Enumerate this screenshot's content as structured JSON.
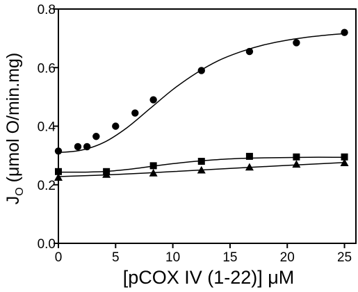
{
  "chart_data": {
    "type": "scatter",
    "title": "",
    "xlabel": "[pCOX IV (1-22)]  μM",
    "ylabel_main": "J",
    "ylabel_sub": "O",
    "ylabel_rest": " (μmol  O/min.mg)",
    "xlim": [
      0,
      26
    ],
    "ylim": [
      0,
      0.8
    ],
    "xticks": [
      0,
      5,
      10,
      15,
      20,
      25
    ],
    "yticks": [
      0.0,
      0.2,
      0.4,
      0.6,
      0.8
    ],
    "ytick_labels": [
      "0.0",
      "0.2",
      "0.4",
      "0.6",
      "0.8"
    ],
    "grid": false,
    "colors": {
      "ink": "#000000"
    },
    "series": [
      {
        "marker": "circle",
        "x": [
          0,
          1.7,
          2.5,
          3.3,
          5,
          6.7,
          8.3,
          12.5,
          16.7,
          20.8,
          25
        ],
        "y": [
          0.315,
          0.33,
          0.33,
          0.365,
          0.4,
          0.445,
          0.49,
          0.59,
          0.655,
          0.685,
          0.72
        ],
        "fit_x": [
          0,
          2,
          4,
          6,
          8,
          10,
          12,
          14,
          16,
          18,
          20,
          22,
          24,
          25
        ],
        "fit_y": [
          0.31,
          0.318,
          0.345,
          0.395,
          0.46,
          0.525,
          0.58,
          0.624,
          0.655,
          0.678,
          0.694,
          0.705,
          0.713,
          0.716
        ]
      },
      {
        "marker": "square",
        "x": [
          0,
          4.2,
          8.3,
          12.5,
          16.7,
          20.8,
          25
        ],
        "y": [
          0.245,
          0.245,
          0.265,
          0.28,
          0.297,
          0.295,
          0.295
        ],
        "fit_x": [
          0,
          2,
          4,
          6,
          8,
          10,
          12,
          14,
          16,
          18,
          20,
          22,
          24,
          25
        ],
        "fit_y": [
          0.243,
          0.243,
          0.245,
          0.252,
          0.262,
          0.272,
          0.28,
          0.286,
          0.29,
          0.292,
          0.293,
          0.294,
          0.294,
          0.294
        ]
      },
      {
        "marker": "triangle",
        "x": [
          0,
          4.2,
          8.3,
          12.5,
          16.7,
          20.8,
          25
        ],
        "y": [
          0.225,
          0.235,
          0.24,
          0.25,
          0.26,
          0.27,
          0.275
        ],
        "fit_x": [
          0,
          5,
          10,
          15,
          20,
          25
        ],
        "fit_y": [
          0.228,
          0.235,
          0.245,
          0.256,
          0.266,
          0.276
        ]
      }
    ]
  }
}
